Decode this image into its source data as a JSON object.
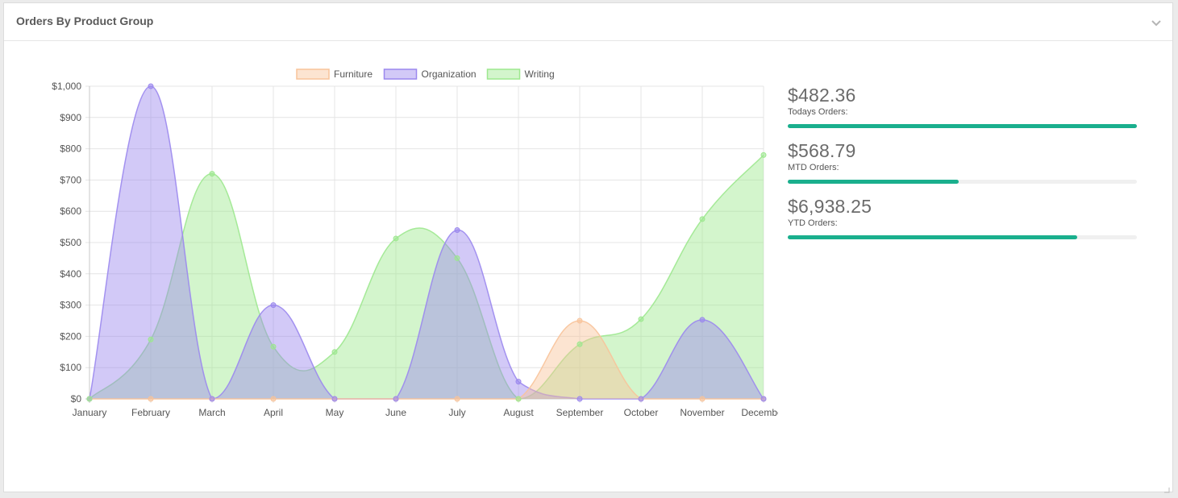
{
  "panel": {
    "title": "Orders By Product Group",
    "collapse_icon": "chevron-down-icon"
  },
  "colors": {
    "furniture": "#f8c39a",
    "organization": "#9b88ee",
    "writing": "#9de88f",
    "progress": "#1aaf8d",
    "grid": "#e4e4e4",
    "text": "#555555"
  },
  "chart_data": {
    "type": "area",
    "categories": [
      "January",
      "February",
      "March",
      "April",
      "May",
      "June",
      "July",
      "August",
      "September",
      "October",
      "November",
      "December"
    ],
    "series": [
      {
        "name": "Furniture",
        "values": [
          0,
          0,
          0,
          0,
          0,
          0,
          0,
          0,
          250,
          0,
          0,
          0
        ]
      },
      {
        "name": "Organization",
        "values": [
          0,
          1000,
          0,
          300,
          0,
          0,
          540,
          55,
          0,
          0,
          253,
          0
        ]
      },
      {
        "name": "Writing",
        "values": [
          0,
          190,
          720,
          167,
          150,
          513,
          450,
          0,
          175,
          255,
          575,
          780
        ]
      }
    ],
    "y_tick_labels": [
      "$0",
      "$100",
      "$200",
      "$300",
      "$400",
      "$500",
      "$600",
      "$700",
      "$800",
      "$900",
      "$1,000"
    ],
    "ylim": [
      0,
      1000
    ],
    "legend_position": "top",
    "grid": true,
    "curve": "smooth"
  },
  "stats": [
    {
      "value": "$482.36",
      "label": "Todays Orders:",
      "progress": 1.0
    },
    {
      "value": "$568.79",
      "label": "MTD Orders:",
      "progress": 0.49
    },
    {
      "value": "$6,938.25",
      "label": "YTD Orders:",
      "progress": 0.83
    }
  ]
}
